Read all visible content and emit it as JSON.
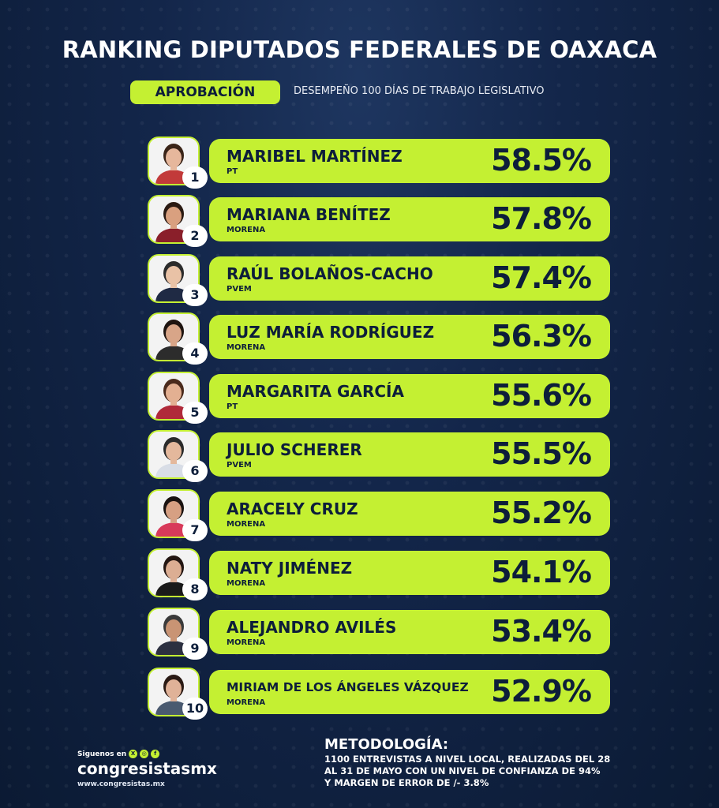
{
  "title": "RANKING DIPUTADOS FEDERALES DE OAXACA",
  "tag": "APROBACIÓN",
  "subtitle": "DESEMPEÑO 100 DÍAS DE TRABAJO LEGISLATIVO",
  "ranking": [
    {
      "rank": "1",
      "name": "MARIBEL MARTÍNEZ",
      "party": "PT",
      "percent": "58.5%"
    },
    {
      "rank": "2",
      "name": "MARIANA BENÍTEZ",
      "party": "MORENA",
      "percent": "57.8%"
    },
    {
      "rank": "3",
      "name": "RAÚL BOLAÑOS-CACHO",
      "party": "PVEM",
      "percent": "57.4%"
    },
    {
      "rank": "4",
      "name": "LUZ MARÍA RODRÍGUEZ",
      "party": "MORENA",
      "percent": "56.3%"
    },
    {
      "rank": "5",
      "name": "MARGARITA GARCÍA",
      "party": "PT",
      "percent": "55.6%"
    },
    {
      "rank": "6",
      "name": "JULIO SCHERER",
      "party": "PVEM",
      "percent": "55.5%"
    },
    {
      "rank": "7",
      "name": "ARACELY CRUZ",
      "party": "MORENA",
      "percent": "55.2%"
    },
    {
      "rank": "8",
      "name": "NATY JIMÉNEZ",
      "party": "MORENA",
      "percent": "54.1%"
    },
    {
      "rank": "9",
      "name": "ALEJANDRO AVILÉS",
      "party": "MORENA",
      "percent": "53.4%"
    },
    {
      "rank": "10",
      "name": "MIRIAM DE LOS ÁNGELES VÁZQUEZ",
      "party": "MORENA",
      "percent": "52.9%"
    }
  ],
  "brand": {
    "follow_label": "Siguenos en",
    "social_icons": [
      "x-icon",
      "instagram-icon",
      "facebook-icon"
    ],
    "handle": "congresistasmx",
    "url": "www.congresistas.mx"
  },
  "methodology": {
    "title": "METODOLOGÍA:",
    "line1": "1100 ENTREVISTAS A NIVEL LOCAL, REALIZADAS DEL 28",
    "line2": "AL 31 DE MAYO  CON UN NIVEL DE CONFIANZA DE 94%",
    "line3": "Y MARGEN DE ERROR DE /- 3.8%"
  },
  "colors": {
    "accent": "#c4f032",
    "background": "#13264a",
    "text_dark": "#0d1e3a"
  }
}
